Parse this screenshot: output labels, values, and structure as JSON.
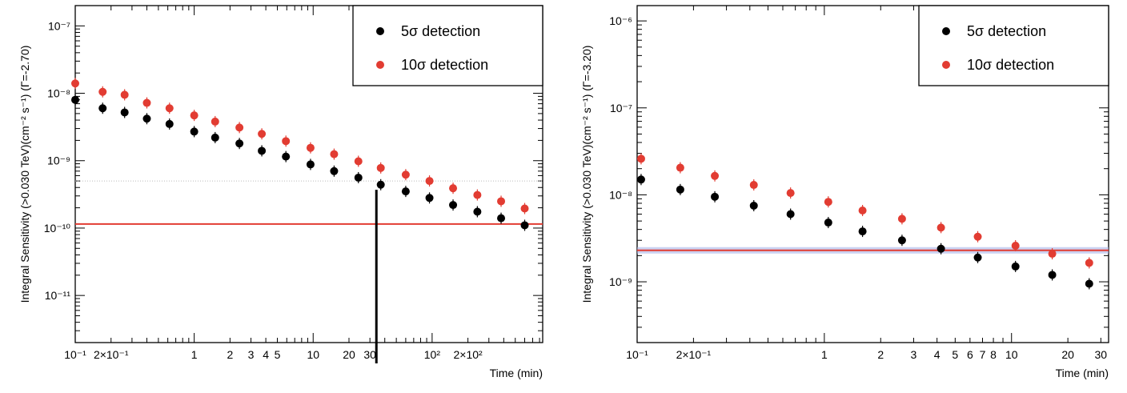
{
  "chart_data": [
    {
      "type": "scatter",
      "xscale": "log",
      "yscale": "log",
      "xlabel": "Time (min)",
      "ylabel": "Integral Sensitivity (>0.030 TeV)(cm⁻² s⁻¹) (Γ=-2.70)",
      "xlim": [
        0.1,
        850
      ],
      "ylim": [
        2e-12,
        2e-07
      ],
      "x_tick_labels": [
        {
          "value": 0.1,
          "label": "10⁻¹"
        },
        {
          "value": 0.2,
          "label": "2×10⁻¹"
        },
        {
          "value": 1,
          "label": "1"
        },
        {
          "value": 2,
          "label": "2"
        },
        {
          "value": 3,
          "label": "3"
        },
        {
          "value": 4,
          "label": "4"
        },
        {
          "value": 5,
          "label": "5"
        },
        {
          "value": 10,
          "label": "10"
        },
        {
          "value": 20,
          "label": "20"
        },
        {
          "value": 30,
          "label": "30"
        },
        {
          "value": 100,
          "label": "10²"
        },
        {
          "value": 200,
          "label": "2×10²"
        }
      ],
      "y_tick_labels": [
        {
          "value": 1e-11,
          "label": "10⁻¹¹"
        },
        {
          "value": 1e-10,
          "label": "10⁻¹⁰"
        },
        {
          "value": 1e-09,
          "label": "10⁻⁹"
        },
        {
          "value": 1e-08,
          "label": "10⁻⁸"
        },
        {
          "value": 1e-07,
          "label": "10⁻⁷"
        }
      ],
      "legend": {
        "position": "top-right",
        "entries": [
          "5σ detection",
          "10σ detection"
        ]
      },
      "series": [
        {
          "name": "5σ detection",
          "color": "#000000",
          "x": [
            0.1,
            0.17,
            0.26,
            0.4,
            0.62,
            1.0,
            1.5,
            2.4,
            3.7,
            5.9,
            9.5,
            15,
            24,
            37,
            60,
            95,
            150,
            240,
            380,
            600
          ],
          "y": [
            8e-09,
            6e-09,
            5.2e-09,
            4.2e-09,
            3.5e-09,
            2.7e-09,
            2.2e-09,
            1.8e-09,
            1.4e-09,
            1.15e-09,
            8.8e-10,
            7e-10,
            5.6e-10,
            4.4e-10,
            3.5e-10,
            2.8e-10,
            2.2e-10,
            1.75e-10,
            1.4e-10,
            1.1e-10
          ]
        },
        {
          "name": "10σ detection",
          "color": "#e23c32",
          "x": [
            0.1,
            0.17,
            0.26,
            0.4,
            0.62,
            1.0,
            1.5,
            2.4,
            3.7,
            5.9,
            9.5,
            15,
            24,
            37,
            60,
            95,
            150,
            240,
            380,
            600
          ],
          "y": [
            1.4e-08,
            1.05e-08,
            9.5e-09,
            7.2e-09,
            6e-09,
            4.7e-09,
            3.8e-09,
            3.1e-09,
            2.5e-09,
            1.95e-09,
            1.55e-09,
            1.25e-09,
            9.8e-10,
            7.8e-10,
            6.2e-10,
            5e-10,
            3.9e-10,
            3.1e-10,
            2.5e-10,
            1.95e-10
          ]
        }
      ],
      "reference_line": {
        "y": 1.15e-10,
        "color": "#e23c32"
      },
      "dotted_line": {
        "y": 5e-10,
        "color": "#bbbbbb"
      },
      "marker_line": {
        "x": 34,
        "y_top": 3.7e-10,
        "color": "#000000"
      }
    },
    {
      "type": "scatter",
      "xscale": "log",
      "yscale": "log",
      "xlabel": "Time (min)",
      "ylabel": "Integral Sensitivity (>0.030 TeV)(cm⁻² s⁻¹) (Γ=-3.20)",
      "xlim": [
        0.1,
        33
      ],
      "ylim": [
        2e-10,
        1.5e-06
      ],
      "x_tick_labels": [
        {
          "value": 0.1,
          "label": "10⁻¹"
        },
        {
          "value": 0.2,
          "label": "2×10⁻¹"
        },
        {
          "value": 1,
          "label": "1"
        },
        {
          "value": 2,
          "label": "2"
        },
        {
          "value": 3,
          "label": "3"
        },
        {
          "value": 4,
          "label": "4"
        },
        {
          "value": 5,
          "label": "5"
        },
        {
          "value": 6,
          "label": "6"
        },
        {
          "value": 7,
          "label": "7"
        },
        {
          "value": 8,
          "label": "8"
        },
        {
          "value": 10,
          "label": "10"
        },
        {
          "value": 20,
          "label": "20"
        },
        {
          "value": 30,
          "label": "30"
        }
      ],
      "y_tick_labels": [
        {
          "value": 1e-09,
          "label": "10⁻⁹"
        },
        {
          "value": 1e-08,
          "label": "10⁻⁸"
        },
        {
          "value": 1e-07,
          "label": "10⁻⁷"
        },
        {
          "value": 1e-06,
          "label": "10⁻⁶"
        }
      ],
      "legend": {
        "position": "top-right",
        "entries": [
          "5σ detection",
          "10σ detection"
        ]
      },
      "series": [
        {
          "name": "5σ detection",
          "color": "#000000",
          "x": [
            0.105,
            0.17,
            0.26,
            0.42,
            0.66,
            1.05,
            1.6,
            2.6,
            4.2,
            6.6,
            10.5,
            16.5,
            26
          ],
          "y": [
            1.5e-08,
            1.15e-08,
            9.5e-09,
            7.5e-09,
            6e-09,
            4.8e-09,
            3.8e-09,
            3e-09,
            2.4e-09,
            1.9e-09,
            1.5e-09,
            1.2e-09,
            9.5e-10
          ]
        },
        {
          "name": "10σ detection",
          "color": "#e23c32",
          "x": [
            0.105,
            0.17,
            0.26,
            0.42,
            0.66,
            1.05,
            1.6,
            2.6,
            4.2,
            6.6,
            10.5,
            16.5,
            26
          ],
          "y": [
            2.6e-08,
            2.05e-08,
            1.65e-08,
            1.3e-08,
            1.05e-08,
            8.3e-09,
            6.6e-09,
            5.3e-09,
            4.2e-09,
            3.3e-09,
            2.6e-09,
            2.1e-09,
            1.65e-09
          ]
        }
      ],
      "reference_line": {
        "y": 2.3e-09,
        "color": "#e23c32",
        "band_color": "#a9b4e8"
      }
    }
  ]
}
